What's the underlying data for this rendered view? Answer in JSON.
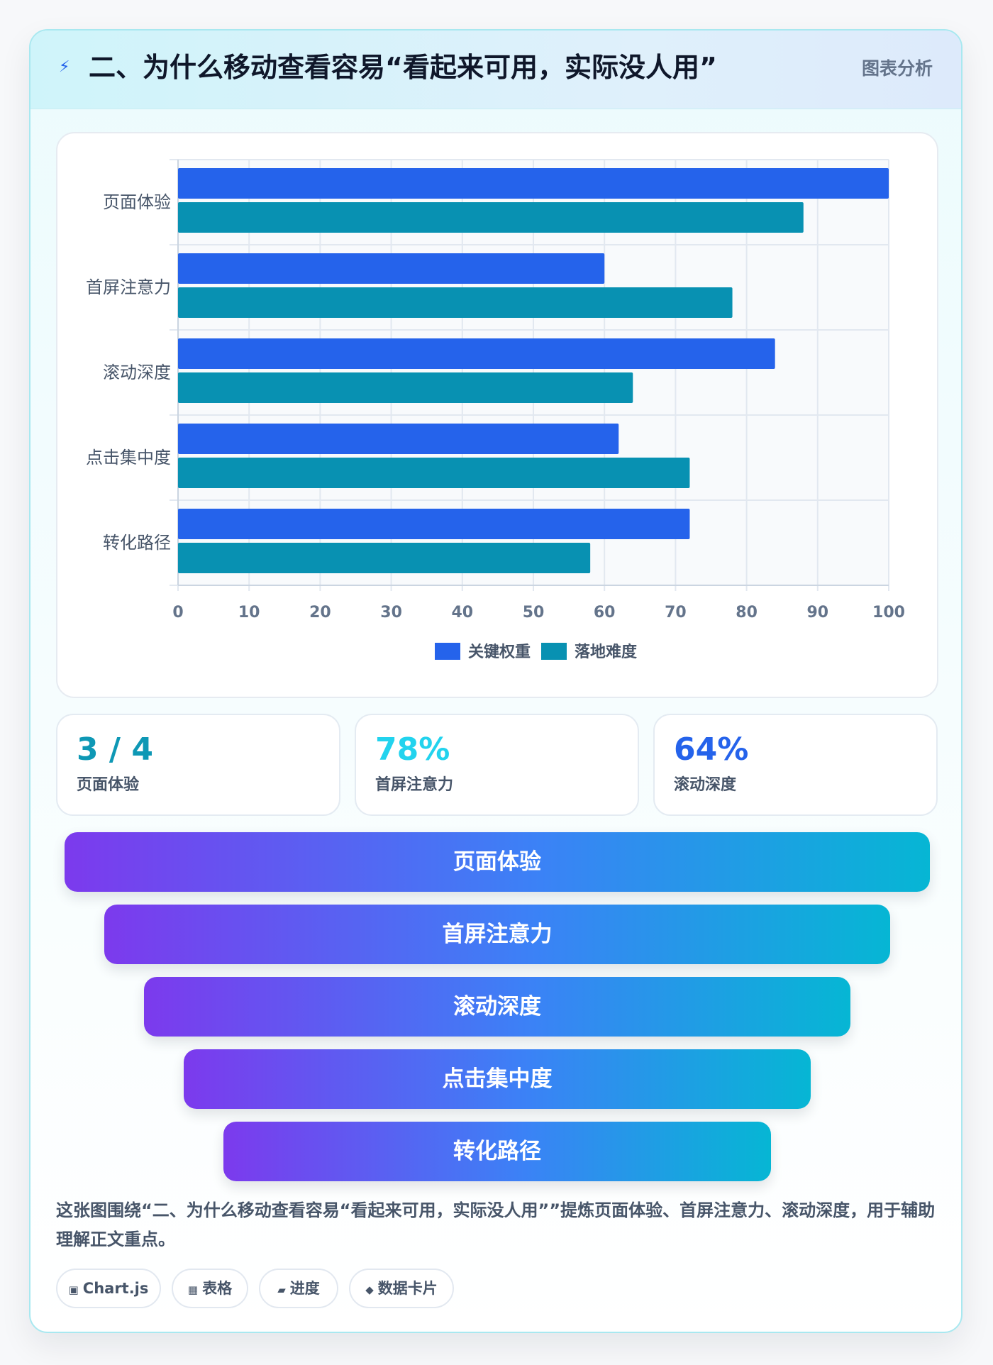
{
  "header": {
    "icon": "lightning-icon",
    "title": "二、为什么移动查看容易“看起来可用，实际没人用”",
    "tag": "图表分析"
  },
  "chart_data": {
    "type": "bar",
    "orientation": "horizontal",
    "categories": [
      "页面体验",
      "首屏注意力",
      "滚动深度",
      "点击集中度",
      "转化路径"
    ],
    "series": [
      {
        "name": "关键权重",
        "color": "#2563eb",
        "values": [
          100,
          60,
          84,
          62,
          72
        ]
      },
      {
        "name": "落地难度",
        "color": "#0891b2",
        "values": [
          88,
          78,
          64,
          72,
          58
        ]
      }
    ],
    "xlim": [
      0,
      100
    ],
    "xticks": [
      0,
      10,
      20,
      30,
      40,
      50,
      60,
      70,
      80,
      90,
      100
    ],
    "grid": true,
    "legend_position": "bottom"
  },
  "stats": [
    {
      "value": "3 / 4",
      "label": "页面体验",
      "color": "#0e98b5"
    },
    {
      "value": "78%",
      "label": "首屏注意力",
      "color": "#22d3ee"
    },
    {
      "value": "64%",
      "label": "滚动深度",
      "color": "#2563eb"
    }
  ],
  "funnel": [
    "页面体验",
    "首屏注意力",
    "滚动深度",
    "点击集中度",
    "转化路径"
  ],
  "description": "这张图围绕“二、为什么移动查看容易“看起来可用，实际没人用””提炼页面体验、首屏注意力、滚动深度，用于辅助理解正文重点。",
  "chips": [
    {
      "icon": "▣",
      "label": "Chart.js"
    },
    {
      "icon": "▦",
      "label": "表格"
    },
    {
      "icon": "▰",
      "label": "进度"
    },
    {
      "icon": "◆",
      "label": "数据卡片"
    }
  ]
}
